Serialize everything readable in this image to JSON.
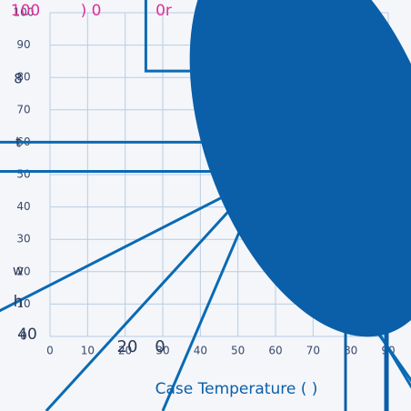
{
  "chart_data": {
    "type": "line",
    "xlabel": "Case Temperature (  )",
    "xlim": [
      0,
      90
    ],
    "xticks": [
      0,
      10,
      20,
      30,
      40,
      50,
      60,
      70,
      80,
      90
    ],
    "ylim": [
      0,
      100
    ],
    "yticks": [
      0,
      10,
      20,
      30,
      40,
      50,
      60,
      70,
      80,
      90,
      100
    ],
    "grid": true,
    "series": [
      {
        "color": "#0a6ab3",
        "x": [
          -15,
          57,
          100
        ],
        "values": [
          60,
          60,
          -23
        ]
      },
      {
        "color": "#0a6ab3",
        "x": [
          -15,
          57,
          100
        ],
        "values": [
          51,
          51,
          -20
        ]
      },
      {
        "color": "#0a6ab3",
        "x": [
          -1,
          58
        ],
        "values": [
          -23,
          52
        ]
      },
      {
        "color": "#0a6ab3",
        "x": [
          -15,
          56
        ],
        "values": [
          7,
          49
        ]
      },
      {
        "color": "#0a6ab3",
        "x": [
          30,
          58
        ],
        "values": [
          -23,
          53
        ]
      },
      {
        "color": "#0a6ab3",
        "x": [
          25.5,
          25.5,
          50
        ],
        "values": [
          104,
          82,
          82
        ]
      }
    ],
    "annotations": [
      {
        "text": "100",
        "color": "#e0309a"
      },
      {
        "text": ")   0",
        "color": "#e0309a"
      },
      {
        "text": "0r",
        "color": "#e0309a"
      },
      {
        "text": "8",
        "color": "#2a3a5a"
      },
      {
        "text": "t",
        "color": "#2a3a5a"
      },
      {
        "text": "w",
        "color": "#2a3a5a"
      },
      {
        "text": "h",
        "color": "#2a3a5a"
      },
      {
        "text": "40",
        "color": "#2a3a5a"
      },
      {
        "text": "20",
        "color": "#2a3a5a"
      },
      {
        "text": "0",
        "color": "#2a3a5a"
      }
    ]
  }
}
